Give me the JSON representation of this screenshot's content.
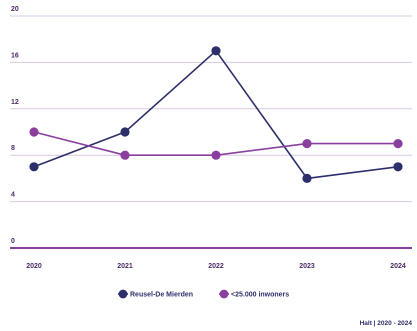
{
  "chart_data": {
    "type": "line",
    "x": [
      "2020",
      "2021",
      "2022",
      "2023",
      "2024"
    ],
    "ylim": [
      0,
      20
    ],
    "yticks": [
      0,
      4,
      8,
      12,
      16,
      20
    ],
    "grid": true,
    "legend_position": "bottom",
    "series": [
      {
        "name": "Reusel-De Mierden",
        "values": [
          7,
          10,
          17,
          6,
          7
        ],
        "color": "#2d2f6b",
        "marker": "circle"
      },
      {
        "name": "<25.000 inwoners",
        "values": [
          10,
          8,
          8,
          9,
          9
        ],
        "color": "#8a3f9e",
        "marker": "circle"
      }
    ],
    "source": "Halt | 2020 - 2024"
  },
  "colors": {
    "grid": "#d9c8e4",
    "axis": "#8a3f9e",
    "tick_text": "#4a2a66"
  }
}
